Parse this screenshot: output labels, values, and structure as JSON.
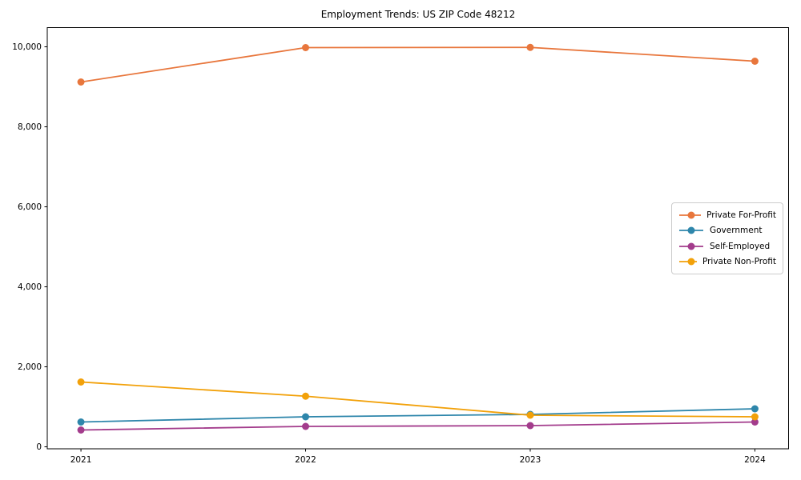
{
  "title": "Employment Trends: US ZIP Code 48212",
  "chart_data": {
    "type": "line",
    "title": "Employment Trends: US ZIP Code 48212",
    "xlabel": "",
    "ylabel": "",
    "grid": false,
    "legend_position": "center right",
    "x": [
      2021,
      2022,
      2023,
      2024
    ],
    "x_tick_labels": [
      "2021",
      "2022",
      "2023",
      "2024"
    ],
    "y_tick_values": [
      0,
      2000,
      4000,
      6000,
      8000,
      10000
    ],
    "y_tick_labels": [
      "0",
      "2,000",
      "4,000",
      "6,000",
      "8,000",
      "10,000"
    ],
    "xlim": [
      2020.85,
      2024.15
    ],
    "ylim": [
      -50,
      10480
    ],
    "series": [
      {
        "name": "Private For-Profit",
        "color": "#e8763c",
        "values": [
          9120,
          9980,
          9985,
          9640
        ]
      },
      {
        "name": "Government",
        "color": "#2e86ab",
        "values": [
          620,
          750,
          810,
          950
        ]
      },
      {
        "name": "Self-Employed",
        "color": "#a33c8c",
        "values": [
          420,
          510,
          530,
          620
        ]
      },
      {
        "name": "Private Non-Profit",
        "color": "#f2a10a",
        "values": [
          1620,
          1265,
          790,
          750
        ]
      }
    ]
  }
}
